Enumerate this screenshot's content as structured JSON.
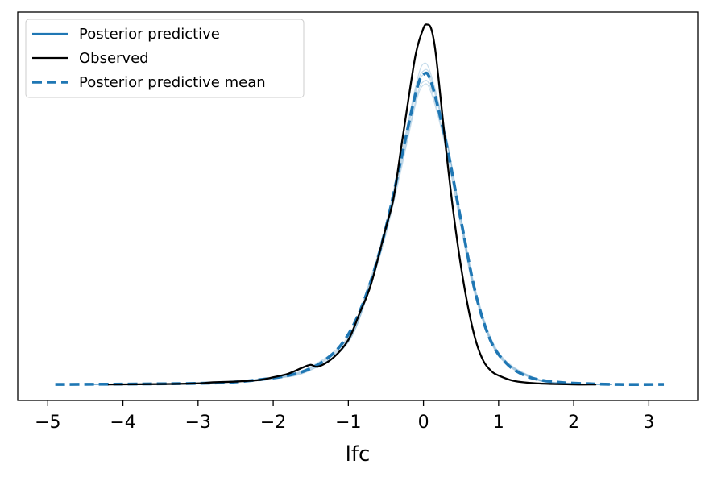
{
  "chart_data": {
    "type": "line",
    "title": "",
    "xlabel": "lfc",
    "ylabel": "",
    "xlim": [
      -5.4,
      3.65
    ],
    "ylim": [
      -0.045,
      1.045
    ],
    "x_ticks": [
      -5,
      -4,
      -3,
      -2,
      -1,
      0,
      1,
      2,
      3
    ],
    "x_tick_labels": [
      "−5",
      "−4",
      "−3",
      "−2",
      "−1",
      "0",
      "1",
      "2",
      "3"
    ],
    "y_ticks_visible": false,
    "grid": false,
    "legend": {
      "position": "top-left",
      "entries": [
        "Posterior predictive",
        "Observed",
        "Posterior predictive mean"
      ]
    },
    "colors": {
      "posterior_predictive": "#1f77b4",
      "observed": "#000000",
      "posterior_predictive_mean": "#1f77b4"
    },
    "series": [
      {
        "name": "Posterior predictive",
        "style": "thin translucent lines (many draws)",
        "draws": [
          {
            "x": [
              -4.5,
              -3.0,
              -2.0,
              -1.5,
              -1.0,
              -0.7,
              -0.5,
              -0.3,
              -0.1,
              0.0,
              0.1,
              0.3,
              0.5,
              0.7,
              1.0,
              1.5,
              2.0,
              2.5
            ],
            "y": [
              0.0,
              0.002,
              0.016,
              0.04,
              0.12,
              0.28,
              0.42,
              0.6,
              0.79,
              0.84,
              0.82,
              0.66,
              0.44,
              0.24,
              0.08,
              0.013,
              0.002,
              0.0
            ]
          },
          {
            "x": [
              -4.5,
              -3.0,
              -2.0,
              -1.5,
              -1.0,
              -0.7,
              -0.5,
              -0.3,
              -0.1,
              0.0,
              0.1,
              0.3,
              0.5,
              0.7,
              1.0,
              1.5,
              2.0,
              2.5
            ],
            "y": [
              0.0,
              0.002,
              0.018,
              0.045,
              0.125,
              0.29,
              0.44,
              0.62,
              0.82,
              0.87,
              0.85,
              0.69,
              0.46,
              0.25,
              0.085,
              0.015,
              0.002,
              0.0
            ]
          },
          {
            "x": [
              -4.5,
              -3.0,
              -2.0,
              -1.5,
              -1.0,
              -0.7,
              -0.5,
              -0.3,
              -0.1,
              0.0,
              0.1,
              0.3,
              0.5,
              0.7,
              1.0,
              1.5,
              2.0,
              2.5
            ],
            "y": [
              0.0,
              0.003,
              0.02,
              0.05,
              0.135,
              0.3,
              0.45,
              0.64,
              0.84,
              0.9,
              0.87,
              0.7,
              0.47,
              0.26,
              0.09,
              0.017,
              0.003,
              0.0
            ]
          },
          {
            "x": [
              -4.5,
              -3.0,
              -2.0,
              -1.5,
              -1.0,
              -0.7,
              -0.5,
              -0.3,
              -0.1,
              0.0,
              0.1,
              0.3,
              0.5,
              0.7,
              1.0,
              1.5,
              2.0,
              2.5
            ],
            "y": [
              0.0,
              0.002,
              0.017,
              0.042,
              0.118,
              0.285,
              0.43,
              0.61,
              0.8,
              0.85,
              0.83,
              0.67,
              0.45,
              0.245,
              0.082,
              0.014,
              0.002,
              0.0
            ]
          },
          {
            "x": [
              -4.5,
              -3.0,
              -2.0,
              -1.5,
              -1.0,
              -0.7,
              -0.5,
              -0.3,
              -0.1,
              0.0,
              0.1,
              0.3,
              0.5,
              0.7,
              1.0,
              1.5,
              2.0,
              2.5
            ],
            "y": [
              0.0,
              0.002,
              0.019,
              0.047,
              0.13,
              0.295,
              0.445,
              0.63,
              0.83,
              0.88,
              0.86,
              0.695,
              0.465,
              0.255,
              0.087,
              0.016,
              0.002,
              0.0
            ]
          }
        ]
      },
      {
        "name": "Observed",
        "style": "solid black",
        "x": [
          -4.2,
          -3.5,
          -3.0,
          -2.8,
          -2.5,
          -2.2,
          -2.0,
          -1.8,
          -1.6,
          -1.5,
          -1.4,
          -1.2,
          -1.0,
          -0.85,
          -0.7,
          -0.5,
          -0.4,
          -0.3,
          -0.2,
          -0.1,
          0.0,
          0.05,
          0.1,
          0.15,
          0.2,
          0.3,
          0.4,
          0.5,
          0.6,
          0.7,
          0.8,
          0.9,
          1.0,
          1.2,
          1.5,
          2.0,
          2.3
        ],
        "y": [
          0.0,
          0.001,
          0.003,
          0.006,
          0.008,
          0.012,
          0.02,
          0.03,
          0.048,
          0.055,
          0.05,
          0.075,
          0.125,
          0.2,
          0.28,
          0.44,
          0.52,
          0.66,
          0.8,
          0.93,
          1.0,
          1.01,
          1.0,
          0.95,
          0.86,
          0.66,
          0.48,
          0.33,
          0.21,
          0.12,
          0.065,
          0.038,
          0.025,
          0.01,
          0.003,
          0.0,
          0.0
        ]
      },
      {
        "name": "Posterior predictive mean",
        "style": "dashed blue",
        "x": [
          -4.9,
          -4.0,
          -3.0,
          -2.5,
          -2.0,
          -1.7,
          -1.5,
          -1.3,
          -1.1,
          -0.9,
          -0.7,
          -0.5,
          -0.3,
          -0.1,
          0.0,
          0.1,
          0.3,
          0.5,
          0.7,
          0.9,
          1.1,
          1.3,
          1.5,
          1.8,
          2.2,
          2.6,
          3.2
        ],
        "y": [
          0.0,
          0.001,
          0.003,
          0.007,
          0.018,
          0.03,
          0.045,
          0.07,
          0.11,
          0.18,
          0.29,
          0.44,
          0.63,
          0.82,
          0.87,
          0.85,
          0.68,
          0.46,
          0.25,
          0.12,
          0.06,
          0.03,
          0.015,
          0.006,
          0.002,
          0.0,
          0.0
        ]
      }
    ]
  }
}
